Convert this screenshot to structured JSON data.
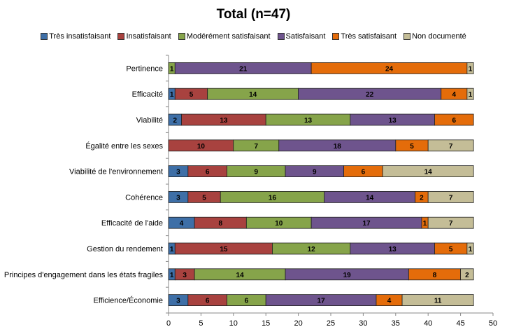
{
  "chart_data": {
    "type": "bar",
    "orientation": "horizontal",
    "stacked": true,
    "title": "Total (n=47)",
    "categories": [
      "Pertinence",
      "Efficacité",
      "Viabilité",
      "Égalité entre les sexes",
      "Viabilité de l'environnement",
      "Cohérence",
      "Efficacité de l'aide",
      "Gestion du rendement",
      "Principes d'engagement dans les états fragiles",
      "Efficience/Économie"
    ],
    "series": [
      {
        "name": "Très insatisfaisant",
        "color": "#3E6FA7",
        "values": [
          0,
          1,
          2,
          0,
          3,
          3,
          4,
          1,
          1,
          3
        ]
      },
      {
        "name": "Insatisfaisant",
        "color": "#A8423F",
        "values": [
          0,
          5,
          13,
          10,
          6,
          5,
          8,
          15,
          3,
          6
        ]
      },
      {
        "name": "Modérément satisfaisant",
        "color": "#86A44A",
        "values": [
          1,
          14,
          13,
          7,
          9,
          16,
          10,
          12,
          14,
          6
        ]
      },
      {
        "name": "Satisfaisant",
        "color": "#6E548D",
        "values": [
          21,
          22,
          13,
          18,
          9,
          14,
          17,
          13,
          19,
          17
        ]
      },
      {
        "name": "Très satisfaisant",
        "color": "#E46C0A",
        "values": [
          24,
          4,
          6,
          5,
          6,
          2,
          1,
          5,
          8,
          4
        ]
      },
      {
        "name": "Non documenté",
        "color": "#C4BD97",
        "values": [
          1,
          1,
          0,
          7,
          14,
          7,
          7,
          1,
          2,
          11
        ]
      }
    ],
    "xlim": [
      0,
      50
    ],
    "xticks": [
      0,
      5,
      10,
      15,
      20,
      25,
      30,
      35,
      40,
      45,
      50
    ],
    "grid": false,
    "legend_position": "top",
    "data_labels": true
  }
}
